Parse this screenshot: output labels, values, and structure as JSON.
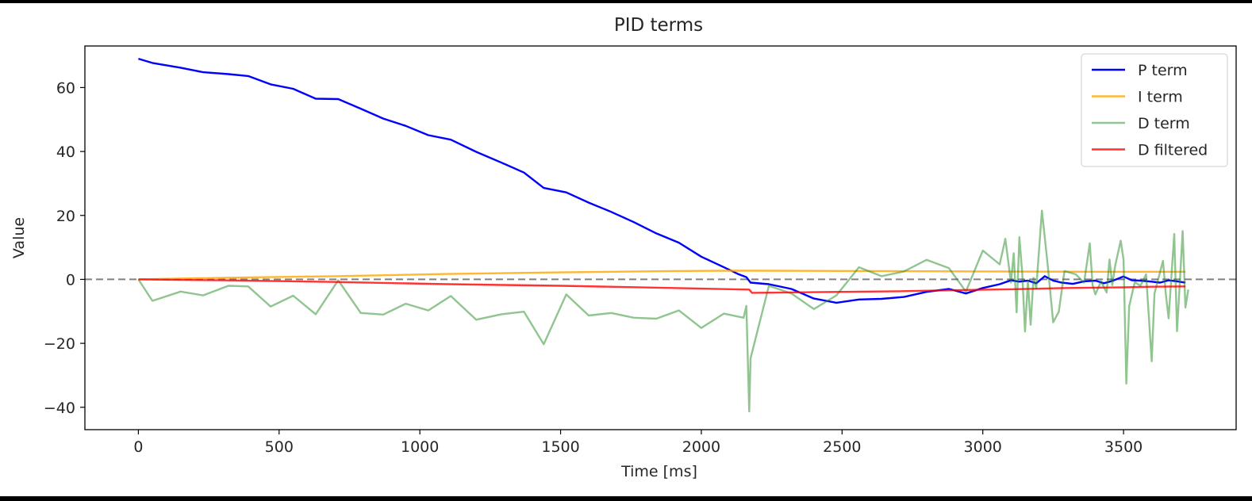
{
  "chart_data": {
    "type": "line",
    "title": "PID terms",
    "xlabel": "Time [ms]",
    "ylabel": "Value",
    "xlim": [
      -190,
      3900
    ],
    "ylim": [
      -47,
      73
    ],
    "x_ticks": [
      0,
      500,
      1000,
      1500,
      2000,
      2500,
      3000,
      3500
    ],
    "y_ticks": [
      -40,
      -20,
      0,
      20,
      40,
      60
    ],
    "x_tick_labels": [
      "0",
      "500",
      "1000",
      "1500",
      "2000",
      "2500",
      "3000",
      "3500"
    ],
    "y_tick_labels": [
      "−40",
      "−20",
      "0",
      "20",
      "40",
      "60"
    ],
    "grid": false,
    "legend_position": "top-right",
    "reference_line": {
      "y": 0,
      "style": "dashed",
      "color": "#808080"
    },
    "series": [
      {
        "name": "P term",
        "color": "#0000ff",
        "opacity": 1,
        "points": [
          [
            0,
            69
          ],
          [
            50,
            67.7
          ],
          [
            150,
            66.2
          ],
          [
            230,
            64.8
          ],
          [
            320,
            64.2
          ],
          [
            390,
            63.6
          ],
          [
            470,
            61
          ],
          [
            550,
            59.6
          ],
          [
            630,
            56.5
          ],
          [
            710,
            56.4
          ],
          [
            790,
            53.4
          ],
          [
            870,
            50.3
          ],
          [
            950,
            48
          ],
          [
            1030,
            45.1
          ],
          [
            1110,
            43.7
          ],
          [
            1200,
            39.9
          ],
          [
            1290,
            36.5
          ],
          [
            1370,
            33.4
          ],
          [
            1440,
            28.6
          ],
          [
            1520,
            27.2
          ],
          [
            1600,
            24
          ],
          [
            1680,
            21.1
          ],
          [
            1760,
            17.9
          ],
          [
            1840,
            14.4
          ],
          [
            1920,
            11.5
          ],
          [
            2000,
            7.1
          ],
          [
            2080,
            3.8
          ],
          [
            2130,
            1.7
          ],
          [
            2160,
            0.7
          ],
          [
            2175,
            -1
          ],
          [
            2240,
            -1.5
          ],
          [
            2320,
            -3
          ],
          [
            2400,
            -6
          ],
          [
            2480,
            -7.3
          ],
          [
            2560,
            -6.3
          ],
          [
            2640,
            -6.1
          ],
          [
            2720,
            -5.5
          ],
          [
            2800,
            -3.9
          ],
          [
            2880,
            -3
          ],
          [
            2940,
            -4.4
          ],
          [
            3000,
            -2.7
          ],
          [
            3060,
            -1.5
          ],
          [
            3100,
            -0.3
          ],
          [
            3130,
            -0.7
          ],
          [
            3160,
            -0.4
          ],
          [
            3190,
            -1.2
          ],
          [
            3220,
            1
          ],
          [
            3250,
            -0.4
          ],
          [
            3280,
            -1
          ],
          [
            3320,
            -1.4
          ],
          [
            3360,
            -0.6
          ],
          [
            3400,
            -0.4
          ],
          [
            3430,
            -1.2
          ],
          [
            3460,
            -0.5
          ],
          [
            3500,
            0.9
          ],
          [
            3530,
            -0.3
          ],
          [
            3560,
            -0.4
          ],
          [
            3600,
            -0.7
          ],
          [
            3630,
            -1
          ],
          [
            3660,
            -0.3
          ],
          [
            3690,
            -0.6
          ],
          [
            3720,
            -1
          ]
        ]
      },
      {
        "name": "I term",
        "color": "#ffa500",
        "opacity": 0.8,
        "points": [
          [
            0,
            0
          ],
          [
            300,
            0.5
          ],
          [
            700,
            1
          ],
          [
            1100,
            1.7
          ],
          [
            1500,
            2.2
          ],
          [
            1900,
            2.6
          ],
          [
            2100,
            2.7
          ],
          [
            2200,
            2.7
          ],
          [
            2600,
            2.6
          ],
          [
            3000,
            2.5
          ],
          [
            3400,
            2.4
          ],
          [
            3720,
            2.4
          ]
        ]
      },
      {
        "name": "D term",
        "color": "#228b22",
        "opacity": 0.5,
        "points": [
          [
            0,
            0
          ],
          [
            50,
            -6.7
          ],
          [
            150,
            -3.8
          ],
          [
            230,
            -5
          ],
          [
            320,
            -2
          ],
          [
            390,
            -2.2
          ],
          [
            470,
            -8.5
          ],
          [
            550,
            -5.1
          ],
          [
            630,
            -10.9
          ],
          [
            710,
            -0.3
          ],
          [
            790,
            -10.5
          ],
          [
            870,
            -11
          ],
          [
            950,
            -7.6
          ],
          [
            1030,
            -9.7
          ],
          [
            1110,
            -5.2
          ],
          [
            1200,
            -12.6
          ],
          [
            1290,
            -10.9
          ],
          [
            1370,
            -10.1
          ],
          [
            1440,
            -20.3
          ],
          [
            1520,
            -4.7
          ],
          [
            1600,
            -11.3
          ],
          [
            1680,
            -10.5
          ],
          [
            1760,
            -12
          ],
          [
            1840,
            -12.3
          ],
          [
            1920,
            -9.7
          ],
          [
            2000,
            -15.2
          ],
          [
            2080,
            -10.7
          ],
          [
            2150,
            -12
          ],
          [
            2160,
            -8.3
          ],
          [
            2170,
            -41.3
          ],
          [
            2175,
            -24.7
          ],
          [
            2240,
            -2
          ],
          [
            2320,
            -4.4
          ],
          [
            2400,
            -9.3
          ],
          [
            2480,
            -5
          ],
          [
            2560,
            3.8
          ],
          [
            2640,
            1
          ],
          [
            2720,
            2.5
          ],
          [
            2800,
            6.1
          ],
          [
            2880,
            3.5
          ],
          [
            2940,
            -3.8
          ],
          [
            3000,
            9
          ],
          [
            3060,
            4.7
          ],
          [
            3080,
            12.7
          ],
          [
            3100,
            -1
          ],
          [
            3110,
            8.2
          ],
          [
            3120,
            -10.3
          ],
          [
            3130,
            13.2
          ],
          [
            3140,
            2
          ],
          [
            3150,
            -16.3
          ],
          [
            3160,
            -0.5
          ],
          [
            3170,
            -14.2
          ],
          [
            3180,
            0.5
          ],
          [
            3190,
            -2.8
          ],
          [
            3210,
            21.5
          ],
          [
            3230,
            5
          ],
          [
            3250,
            -13.4
          ],
          [
            3270,
            -10.1
          ],
          [
            3290,
            2.6
          ],
          [
            3330,
            1.6
          ],
          [
            3360,
            -1
          ],
          [
            3380,
            11.3
          ],
          [
            3390,
            -1.8
          ],
          [
            3400,
            -4.7
          ],
          [
            3420,
            -0.6
          ],
          [
            3440,
            -4.1
          ],
          [
            3450,
            6.2
          ],
          [
            3460,
            -1.8
          ],
          [
            3470,
            4.1
          ],
          [
            3490,
            12.1
          ],
          [
            3500,
            6.2
          ],
          [
            3510,
            -32.6
          ],
          [
            3520,
            -8.4
          ],
          [
            3540,
            -0.8
          ],
          [
            3560,
            -2
          ],
          [
            3580,
            1.6
          ],
          [
            3600,
            -25.6
          ],
          [
            3610,
            -4.4
          ],
          [
            3640,
            5.8
          ],
          [
            3650,
            -4.4
          ],
          [
            3660,
            -12.2
          ],
          [
            3680,
            14.2
          ],
          [
            3690,
            -16.2
          ],
          [
            3700,
            -1.1
          ],
          [
            3710,
            15.1
          ],
          [
            3720,
            -8.8
          ],
          [
            3730,
            -3.2
          ]
        ]
      },
      {
        "name": "D filtered",
        "color": "#ff0000",
        "opacity": 0.8,
        "points": [
          [
            0,
            0
          ],
          [
            300,
            -0.3
          ],
          [
            700,
            -0.8
          ],
          [
            1100,
            -1.5
          ],
          [
            1500,
            -2
          ],
          [
            1900,
            -2.7
          ],
          [
            2170,
            -3.2
          ],
          [
            2180,
            -4.2
          ],
          [
            2400,
            -4
          ],
          [
            2700,
            -3.7
          ],
          [
            2900,
            -3.4
          ],
          [
            3100,
            -3.1
          ],
          [
            3300,
            -2.7
          ],
          [
            3500,
            -2.5
          ],
          [
            3600,
            -2.3
          ],
          [
            3720,
            -2.2
          ]
        ]
      }
    ]
  }
}
